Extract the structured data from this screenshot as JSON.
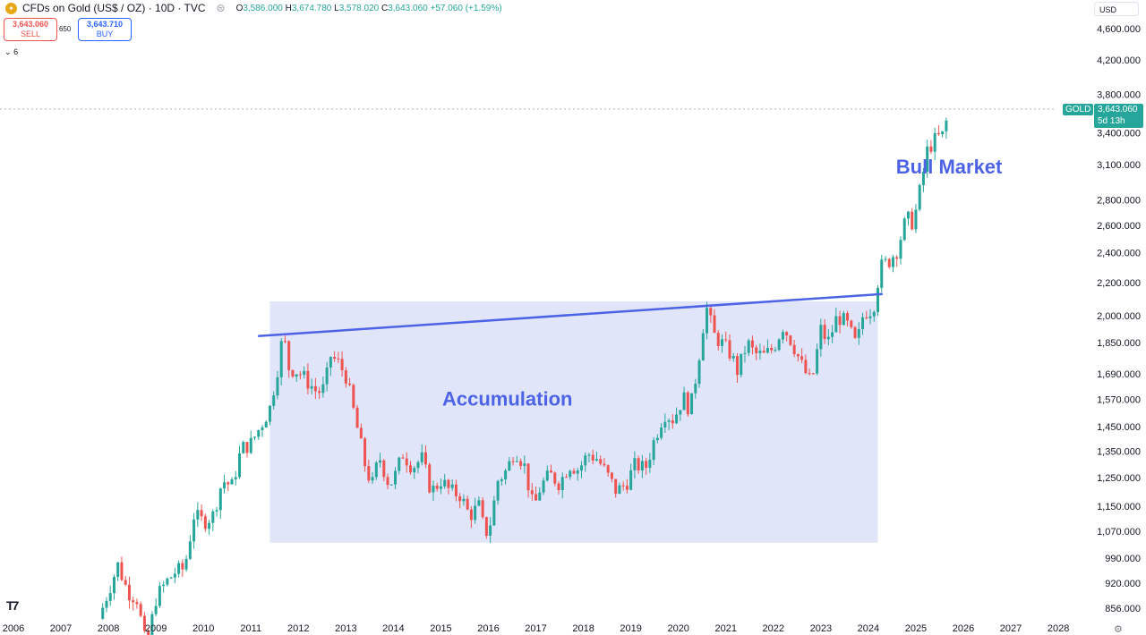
{
  "header": {
    "symbol_title": "CFDs on Gold (US$ / OZ) · 10D · TVC",
    "ohlc": {
      "o_label": "O",
      "o": "3,586.000",
      "h_label": "H",
      "h": "3,674.780",
      "l_label": "L",
      "l": "3,578.020",
      "c_label": "C",
      "c": "3,643.060",
      "change": "+57.060 (+1.59%)"
    }
  },
  "trade": {
    "sell_price": "3,643.060",
    "sell_label": "SELL",
    "spread": "650",
    "buy_price": "3,643.710",
    "buy_label": "BUY",
    "collapse_count": "6"
  },
  "price_scale": {
    "currency": "USD"
  },
  "last_price": {
    "symbol": "GOLD",
    "price": "3,643.060",
    "countdown": "5d 13h"
  },
  "colors": {
    "up": "#26a69a",
    "down": "#ef5350",
    "accent": "#4d63e6",
    "zone_fill": "#dfe4fa",
    "last_price": "#26a69a"
  },
  "icons": {
    "logo": "gold-coin-icon",
    "tv": "tradingview-logo-icon",
    "settings": "gear-icon"
  },
  "chart_data": {
    "type": "candlestick",
    "title": "CFDs on Gold (US$ / OZ)",
    "timeframe": "10D",
    "scale": "log",
    "y_ticks": [
      "4,600.000",
      "4,200.000",
      "3,800.000",
      "3,400.000",
      "3,100.000",
      "2,800.000",
      "2,600.000",
      "2,400.000",
      "2,200.000",
      "2,000.000",
      "1,850.000",
      "1,690.000",
      "1,570.000",
      "1,450.000",
      "1,350.000",
      "1,250.000",
      "1,150.000",
      "1,070.000",
      "990.000",
      "920.000",
      "856.000"
    ],
    "y_tick_values": [
      4600,
      4200,
      3800,
      3400,
      3100,
      2800,
      2600,
      2400,
      2200,
      2000,
      1850,
      1690,
      1570,
      1450,
      1350,
      1250,
      1150,
      1070,
      990,
      920,
      856
    ],
    "x_ticks": [
      "2006",
      "2007",
      "2008",
      "2009",
      "2010",
      "2011",
      "2012",
      "2013",
      "2014",
      "2015",
      "2016",
      "2017",
      "2018",
      "2019",
      "2020",
      "2021",
      "2022",
      "2023",
      "2024",
      "2025",
      "2026",
      "2027",
      "2028"
    ],
    "series": [
      {
        "points": [
          [
            2007.8,
            830
          ],
          [
            2008.0,
            900
          ],
          [
            2008.2,
            970
          ],
          [
            2008.4,
            900
          ],
          [
            2008.6,
            880
          ],
          [
            2008.8,
            760
          ],
          [
            2009.0,
            880
          ],
          [
            2009.2,
            920
          ],
          [
            2009.4,
            950
          ],
          [
            2009.6,
            960
          ],
          [
            2009.8,
            1120
          ],
          [
            2010.0,
            1100
          ],
          [
            2010.2,
            1120
          ],
          [
            2010.4,
            1240
          ],
          [
            2010.6,
            1220
          ],
          [
            2010.8,
            1360
          ],
          [
            2011.0,
            1380
          ],
          [
            2011.2,
            1450
          ],
          [
            2011.4,
            1530
          ],
          [
            2011.55,
            1700
          ],
          [
            2011.68,
            1900
          ],
          [
            2011.8,
            1720
          ],
          [
            2012.0,
            1700
          ],
          [
            2012.2,
            1650
          ],
          [
            2012.4,
            1600
          ],
          [
            2012.55,
            1620
          ],
          [
            2012.68,
            1780
          ],
          [
            2012.85,
            1740
          ],
          [
            2013.0,
            1680
          ],
          [
            2013.2,
            1480
          ],
          [
            2013.4,
            1300
          ],
          [
            2013.55,
            1220
          ],
          [
            2013.7,
            1330
          ],
          [
            2013.9,
            1230
          ],
          [
            2014.0,
            1240
          ],
          [
            2014.2,
            1340
          ],
          [
            2014.4,
            1290
          ],
          [
            2014.6,
            1320
          ],
          [
            2014.8,
            1200
          ],
          [
            2015.0,
            1240
          ],
          [
            2015.2,
            1200
          ],
          [
            2015.4,
            1190
          ],
          [
            2015.6,
            1120
          ],
          [
            2015.8,
            1150
          ],
          [
            2015.93,
            1060
          ],
          [
            2016.05,
            1100
          ],
          [
            2016.2,
            1240
          ],
          [
            2016.4,
            1280
          ],
          [
            2016.55,
            1360
          ],
          [
            2016.75,
            1300
          ],
          [
            2016.95,
            1140
          ],
          [
            2017.1,
            1220
          ],
          [
            2017.3,
            1260
          ],
          [
            2017.5,
            1230
          ],
          [
            2017.7,
            1300
          ],
          [
            2017.9,
            1280
          ],
          [
            2018.1,
            1340
          ],
          [
            2018.3,
            1320
          ],
          [
            2018.5,
            1260
          ],
          [
            2018.7,
            1200
          ],
          [
            2018.9,
            1230
          ],
          [
            2019.1,
            1300
          ],
          [
            2019.3,
            1280
          ],
          [
            2019.5,
            1400
          ],
          [
            2019.7,
            1510
          ],
          [
            2019.9,
            1480
          ],
          [
            2020.1,
            1580
          ],
          [
            2020.25,
            1520
          ],
          [
            2020.4,
            1720
          ],
          [
            2020.58,
            2060
          ],
          [
            2020.75,
            1890
          ],
          [
            2020.9,
            1850
          ],
          [
            2021.1,
            1790
          ],
          [
            2021.25,
            1700
          ],
          [
            2021.45,
            1850
          ],
          [
            2021.6,
            1790
          ],
          [
            2021.8,
            1780
          ],
          [
            2022.0,
            1820
          ],
          [
            2022.2,
            1940
          ],
          [
            2022.4,
            1850
          ],
          [
            2022.6,
            1730
          ],
          [
            2022.8,
            1640
          ],
          [
            2023.0,
            1920
          ],
          [
            2023.15,
            1850
          ],
          [
            2023.35,
            2000
          ],
          [
            2023.55,
            1950
          ],
          [
            2023.75,
            1830
          ],
          [
            2023.9,
            2020
          ],
          [
            2024.1,
            2040
          ],
          [
            2024.25,
            2300
          ],
          [
            2024.45,
            2350
          ],
          [
            2024.6,
            2420
          ],
          [
            2024.8,
            2650
          ],
          [
            2024.95,
            2620
          ],
          [
            2025.1,
            2900
          ],
          [
            2025.25,
            3250
          ],
          [
            2025.45,
            3350
          ],
          [
            2025.6,
            3380
          ],
          [
            2025.68,
            3643
          ]
        ]
      }
    ],
    "annotations": [
      {
        "type": "text",
        "text": "Accumulation",
        "x": 2016.4,
        "y": 1540
      },
      {
        "type": "text",
        "text": "Bull Market",
        "x": 2025.7,
        "y": 3020
      },
      {
        "type": "trendline",
        "x1": 2011.15,
        "y1": 1885,
        "x2": 2024.3,
        "y2": 2130
      },
      {
        "type": "rectangle",
        "x1": 2011.4,
        "y1": 2085,
        "x2": 2024.2,
        "y2": 1035
      }
    ]
  }
}
